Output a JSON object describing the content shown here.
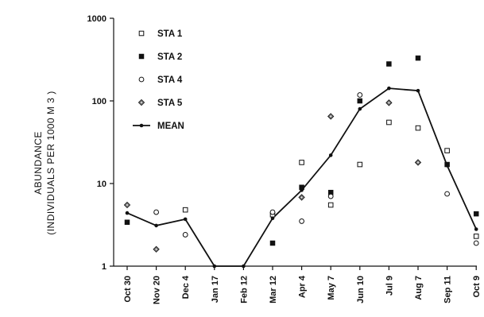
{
  "chart_data": {
    "type": "scatter",
    "title": "",
    "xlabel": "",
    "ylabel": "ABUNDANCE",
    "ylabel_line2": "(INDIVIDUALS PER 1000 M 3 )",
    "yscale": "log",
    "ylim": [
      1,
      1000
    ],
    "yticks": [
      1,
      10,
      100,
      1000
    ],
    "ytick_labels": [
      "1",
      "10",
      "100",
      "1000"
    ],
    "grid": false,
    "legend_position": "top-left",
    "categories": [
      "Oct 30",
      "Nov 20",
      "Dec 4",
      "Jan 17",
      "Feb 12",
      "Mar 12",
      "Apr 4",
      "May 7",
      "Jun 10",
      "Jul 9",
      "Aug 7",
      "Sep 11",
      "Oct 9"
    ],
    "series": [
      {
        "name": "STA 1",
        "marker": "open-square",
        "values": [
          null,
          null,
          4.8,
          null,
          null,
          4.2,
          18,
          5.5,
          17,
          55,
          47,
          25,
          2.3
        ]
      },
      {
        "name": "STA 2",
        "marker": "filled-square",
        "values": [
          3.4,
          null,
          null,
          null,
          null,
          1.9,
          9,
          7.8,
          100,
          280,
          330,
          17,
          4.3
        ]
      },
      {
        "name": "STA 4",
        "marker": "open-circle",
        "values": [
          null,
          4.5,
          2.4,
          null,
          null,
          4.5,
          3.5,
          7.0,
          118,
          null,
          null,
          7.5,
          1.9
        ]
      },
      {
        "name": "STA 5",
        "marker": "dotted-diamond",
        "values": [
          5.5,
          1.6,
          null,
          null,
          null,
          null,
          6.8,
          65,
          null,
          95,
          18,
          null,
          null
        ]
      },
      {
        "name": "MEAN",
        "marker": "line-dot",
        "values": [
          4.4,
          3.1,
          3.7,
          1.0,
          1.0,
          3.8,
          8.3,
          22,
          80,
          142,
          133,
          16.5,
          2.8
        ]
      }
    ]
  }
}
